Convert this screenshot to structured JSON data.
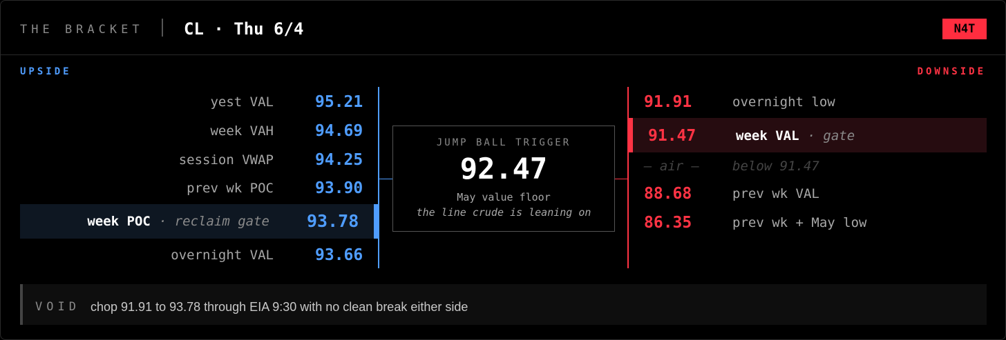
{
  "header": {
    "title": "THE BRACKET",
    "subtitle": "CL · Thu 6/4",
    "badge": "N4T"
  },
  "upside": {
    "label": "UPSIDE",
    "levels": [
      {
        "label": "yest VAL",
        "value": "95.21"
      },
      {
        "label": "week VAH",
        "value": "94.69"
      },
      {
        "label": "session VWAP",
        "value": "94.25"
      },
      {
        "label": "prev wk POC",
        "value": "93.90"
      },
      {
        "label": "week POC",
        "note": "· reclaim gate",
        "value": "93.78",
        "highlight": true
      },
      {
        "label": "overnight VAL",
        "value": "93.66"
      }
    ]
  },
  "trigger": {
    "title": "JUMP BALL TRIGGER",
    "value": "92.47",
    "line1": "May value floor",
    "line2": "the line crude is leaning on"
  },
  "downside": {
    "label": "DOWNSIDE",
    "levels": [
      {
        "value": "91.91",
        "label": "overnight low"
      },
      {
        "value": "91.47",
        "label": "week VAL",
        "note": "· gate",
        "highlight": true
      },
      {
        "value": "— air —",
        "label": "below 91.47",
        "muted": true
      },
      {
        "value": "88.68",
        "label": "prev wk VAL"
      },
      {
        "value": "86.35",
        "label": "prev wk + May low"
      }
    ]
  },
  "footer": {
    "label": "VOID",
    "text": "chop 91.91 to 93.78 through EIA 9:30 with no clean break either side"
  }
}
